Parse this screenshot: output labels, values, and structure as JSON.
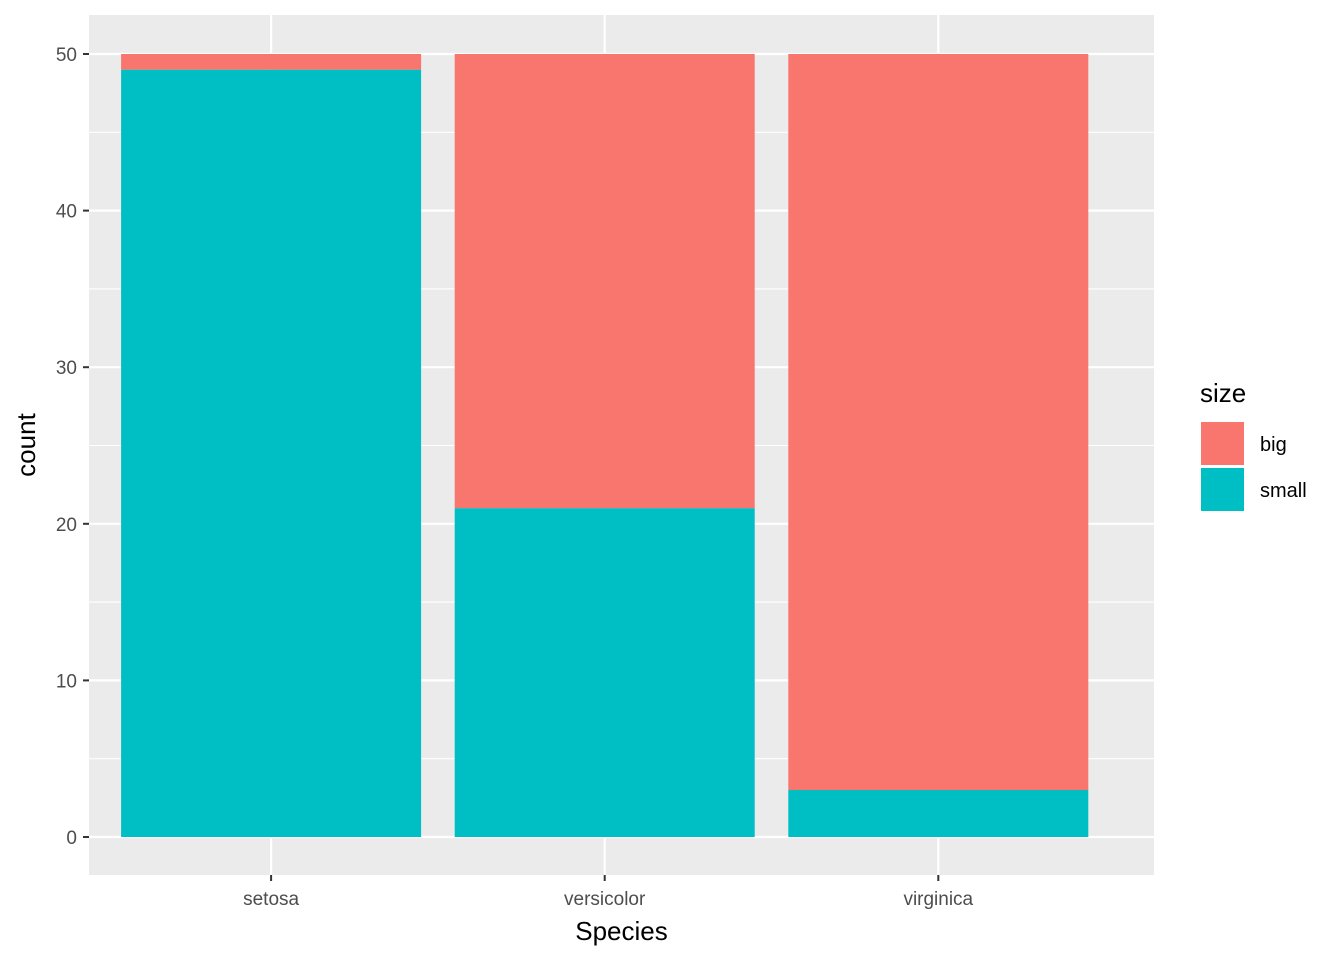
{
  "chart_data": {
    "type": "bar",
    "stacked": true,
    "categories": [
      "setosa",
      "versicolor",
      "virginica"
    ],
    "series": [
      {
        "name": "big",
        "values": [
          1,
          29,
          47
        ],
        "color": "#F8766D"
      },
      {
        "name": "small",
        "values": [
          49,
          21,
          3
        ],
        "color": "#00BFC4"
      }
    ],
    "xlabel": "Species",
    "ylabel": "count",
    "ylim": [
      0,
      50
    ],
    "yticks": [
      0,
      10,
      20,
      30,
      40,
      50
    ],
    "grid": true,
    "legend": {
      "title": "size",
      "position": "right"
    },
    "colors": {
      "panel_background": "#EBEBEB",
      "gridline": "#FFFFFF"
    }
  }
}
